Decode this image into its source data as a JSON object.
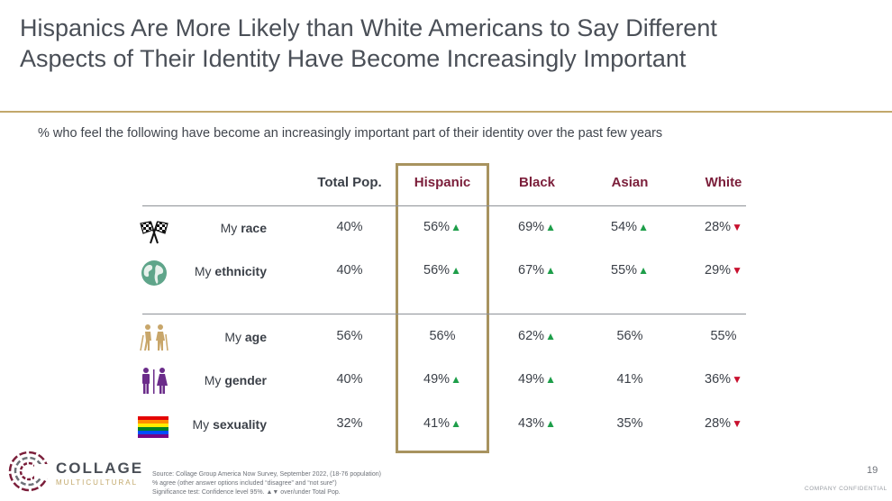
{
  "title": {
    "line1": "Hispanics Are More Likely than White Americans to Say Different",
    "line2": "Aspects of Their Identity Have Become Increasingly Important"
  },
  "subtitle": "% who feel the following have become an increasingly important part of their identity over the past few years",
  "columns": [
    "Total Pop.",
    "Hispanic",
    "Black",
    "Asian",
    "White"
  ],
  "rows": [
    {
      "label_prefix": "My",
      "label_bold": "race",
      "icon": "checkered-flags-icon",
      "values": [
        "40%",
        "56%",
        "69%",
        "54%",
        "28%"
      ],
      "marks": [
        "",
        "up",
        "up",
        "up",
        "down"
      ]
    },
    {
      "label_prefix": "My",
      "label_bold": "ethnicity",
      "icon": "globe-icon",
      "values": [
        "40%",
        "56%",
        "67%",
        "55%",
        "29%"
      ],
      "marks": [
        "",
        "up",
        "up",
        "up",
        "down"
      ]
    },
    {
      "label_prefix": "My",
      "label_bold": "age",
      "icon": "elderly-people-icon",
      "values": [
        "56%",
        "56%",
        "62%",
        "56%",
        "55%"
      ],
      "marks": [
        "",
        "",
        "up",
        "",
        ""
      ]
    },
    {
      "label_prefix": "My",
      "label_bold": "gender",
      "icon": "man-woman-icon",
      "values": [
        "40%",
        "49%",
        "49%",
        "41%",
        "36%"
      ],
      "marks": [
        "",
        "up",
        "up",
        "",
        "down"
      ]
    },
    {
      "label_prefix": "My",
      "label_bold": "sexuality",
      "icon": "rainbow-flag-icon",
      "values": [
        "32%",
        "41%",
        "43%",
        "35%",
        "28%"
      ],
      "marks": [
        "",
        "up",
        "up",
        "",
        "down"
      ]
    }
  ],
  "symbols": {
    "up": "▲",
    "down": "▼"
  },
  "colors": {
    "accent_gold": "#c2a86b",
    "segment_header": "#7b1e3a",
    "up": "#1e9e4a",
    "down": "#c8102e"
  },
  "logo": {
    "word": "COLLAGE",
    "sub": "MULTICULTURAL"
  },
  "footnotes": [
    "Source: Collage Group America Now Survey, September 2022, (18-76 population)",
    "% agree (other answer options included “disagree” and “not sure”)",
    "Significance test: Confidence level 95%. ▲▼ over/under Total Pop."
  ],
  "page_number": "19",
  "confidential": "COMPANY CONFIDENTIAL"
}
